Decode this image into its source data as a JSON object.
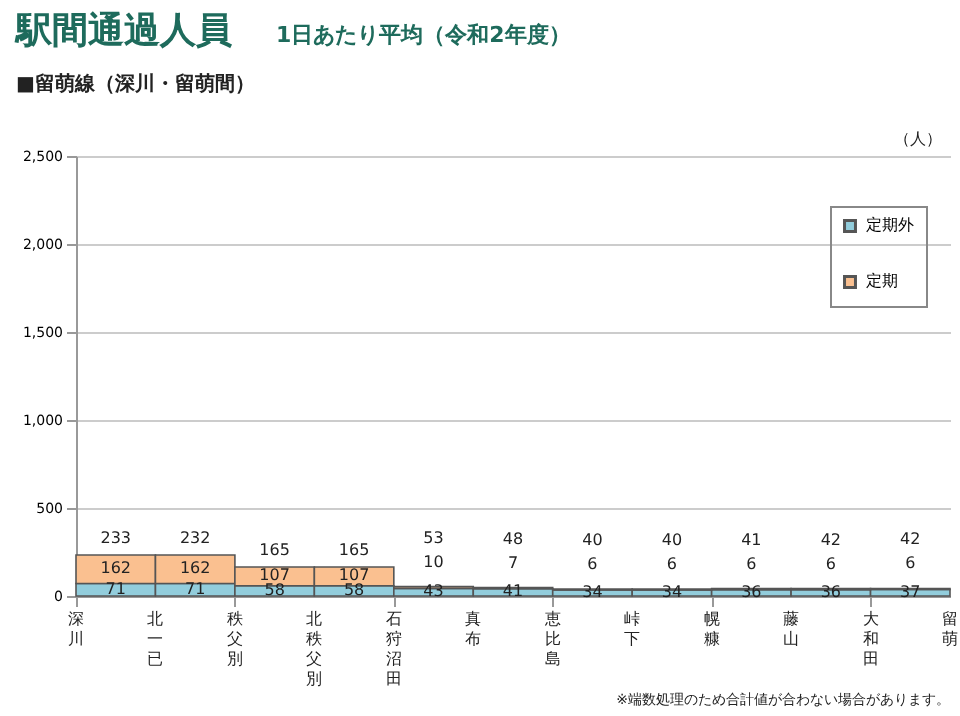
{
  "chart_data": {
    "type": "bar",
    "title": "駅間通過人員",
    "subtitle": "1日あたり平均（令和2年度）",
    "ylabel": "（人）",
    "annotations": [
      "■留萌線（深川・留萌間）",
      "※端数処理のため合計値が合わない場合があります。",
      "深川",
      "北一已",
      "秩父別",
      "北秩父別",
      "石狩沼田",
      "真布",
      "恵比島",
      "峠下",
      "幌糠",
      "藤山",
      "大和田",
      "留萌"
    ],
    "categories": [
      null,
      null,
      null,
      null,
      null,
      null,
      null,
      null,
      null,
      null,
      null
    ],
    "stacked": true,
    "series": [
      {
        "name": "定期外",
        "color": "#92cddc",
        "values": [
          71,
          71,
          58,
          58,
          43,
          41,
          34,
          34,
          36,
          36,
          37
        ]
      },
      {
        "name": "定期",
        "color": "#fac090",
        "values": [
          162,
          162,
          107,
          107,
          10,
          7,
          6,
          6,
          6,
          6,
          6
        ]
      }
    ],
    "totals": [
      "233",
      "232",
      "165",
      "165",
      "53",
      "48",
      "40",
      "40",
      "41",
      "42",
      "42"
    ],
    "data_labels": true,
    "ylim": [
      0,
      2500
    ],
    "yticks": [
      0,
      {
        "value": 500,
        "label": "500"
      },
      {
        "value": 1000,
        "label": "1,000"
      },
      {
        "value": 1500,
        "label": "1,500"
      },
      {
        "value": 2000,
        "label": "2,000"
      },
      {
        "value": 2500,
        "label": "2,500"
      }
    ],
    "grid": "y",
    "legend": "top right"
  }
}
